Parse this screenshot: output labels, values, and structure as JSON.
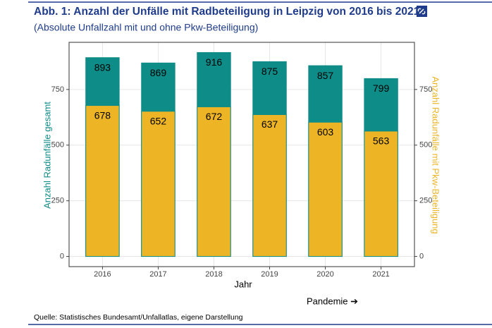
{
  "chart_data": {
    "type": "bar",
    "title": "Abb. 1: Anzahl der Unfälle mit Radbeteiligung in Leipzig von 2016 bis 2021",
    "subtitle": "(Absolute Unfallzahl mit und ohne Pkw-Beteiligung)",
    "x_label": "Jahr",
    "y_label": "Anzahl Radunfälle gesamt",
    "y2_label": "Anzahl Radunfälle mit Pkw-Beteiligung",
    "annotation": "Pandemie ➔",
    "source": "Quelle: Statistisches Bundesamt/Unfallatlas, eigene Darstellung",
    "categories": [
      "2016",
      "2017",
      "2018",
      "2019",
      "2020",
      "2021"
    ],
    "series": [
      {
        "color": "#0e8c88",
        "values": [
          893,
          869,
          916,
          875,
          857,
          799
        ]
      },
      {
        "color": "#edb526",
        "values": [
          678,
          652,
          672,
          637,
          603,
          563
        ],
        "axis": "y2"
      }
    ],
    "ylim": [
      -45.8,
      961.8
    ],
    "yticks": [
      0,
      250,
      500,
      750
    ],
    "y2lim": [
      -45.8,
      961.8
    ],
    "y2ticks": [
      0,
      250,
      500,
      750
    ],
    "grid": true
  }
}
